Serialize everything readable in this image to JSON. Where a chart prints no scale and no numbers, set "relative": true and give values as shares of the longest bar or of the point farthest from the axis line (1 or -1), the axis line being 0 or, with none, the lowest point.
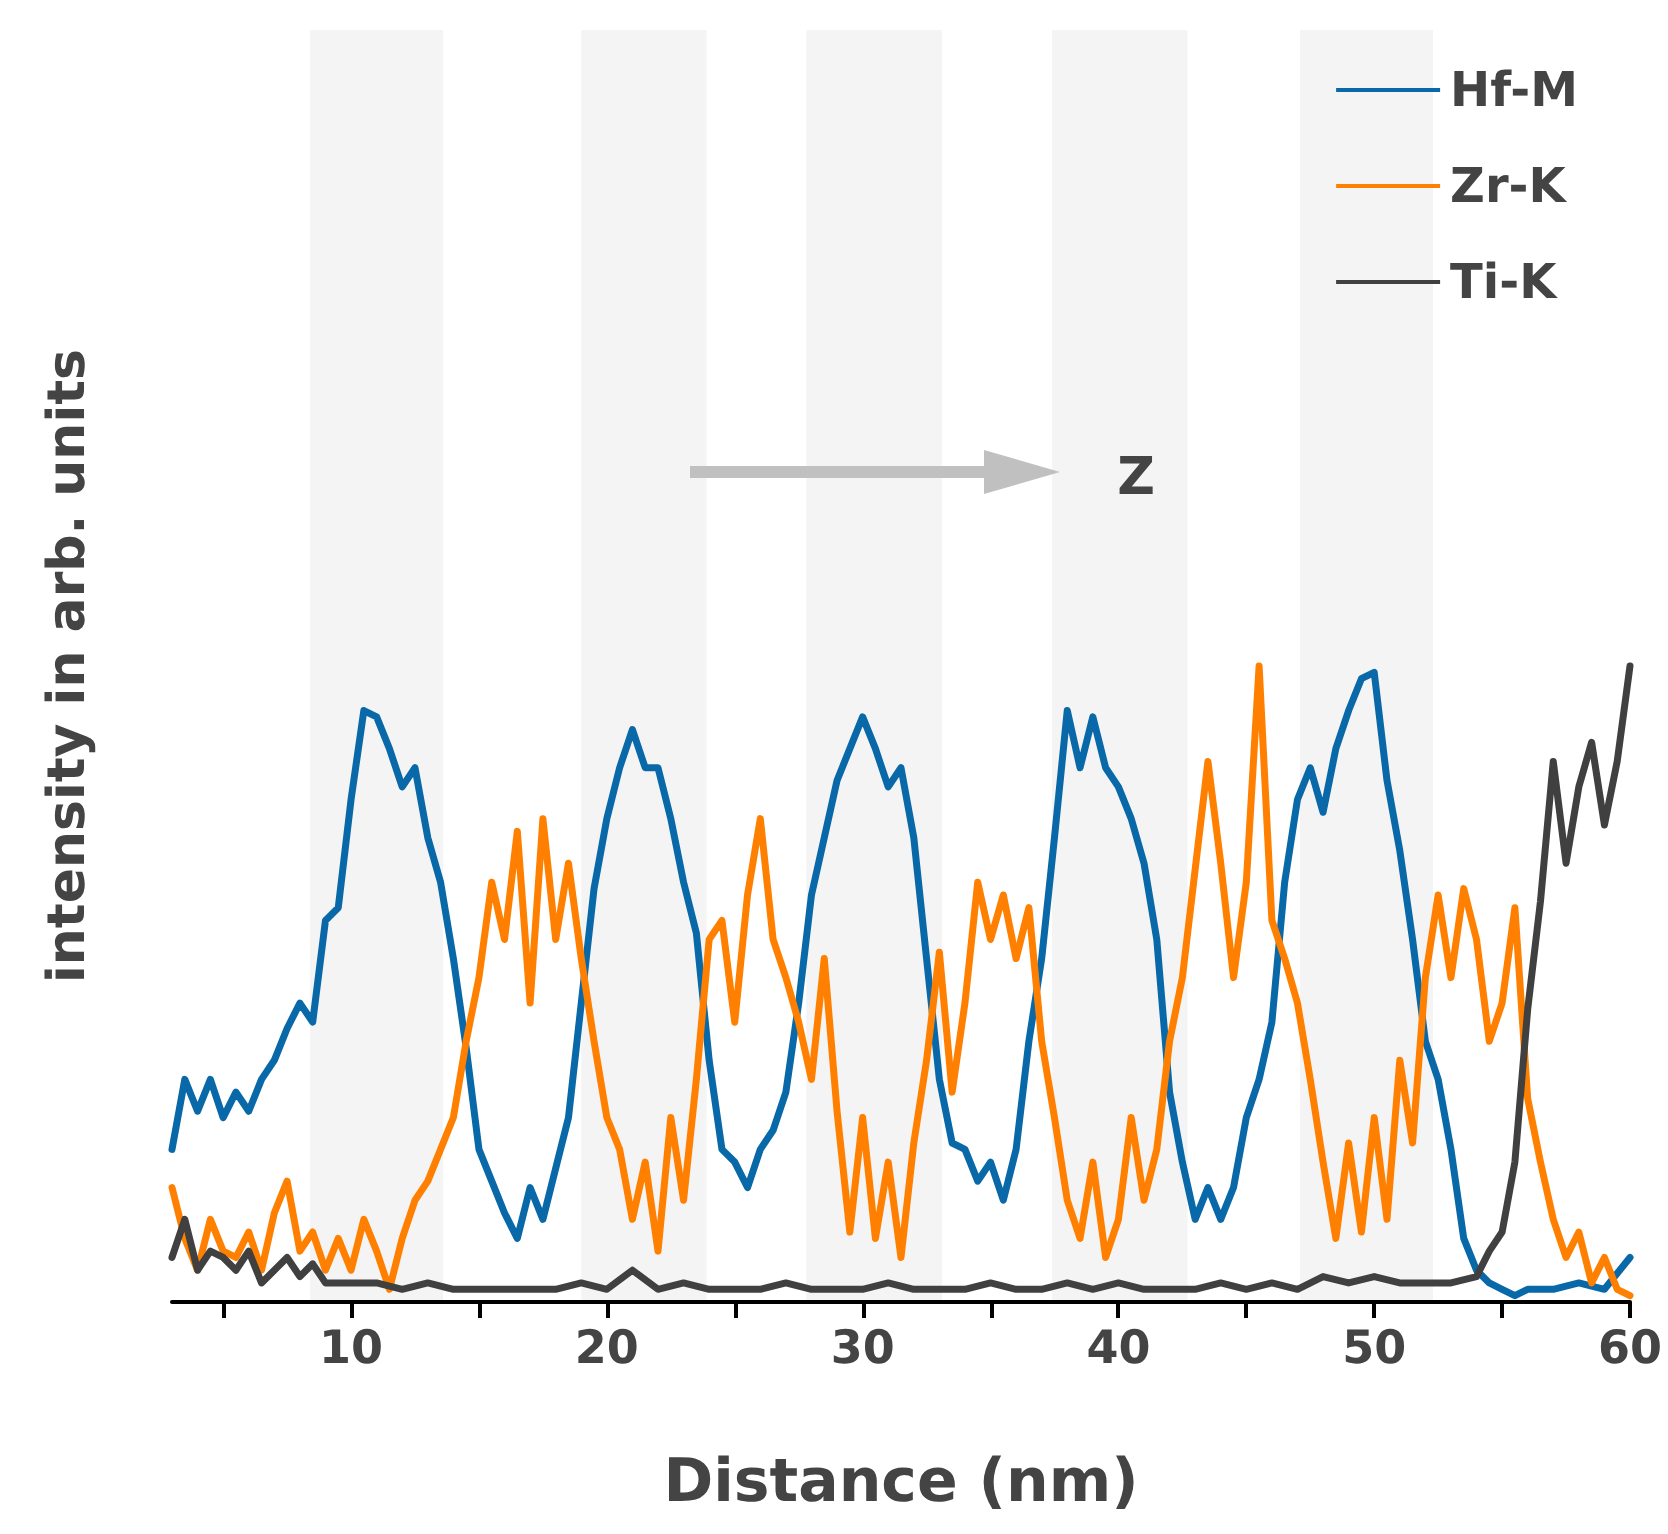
{
  "chart_data": {
    "type": "line",
    "xlabel": "Distance (nm)",
    "ylabel": "intensity in arb. units",
    "relative": true,
    "xlim": [
      3,
      60
    ],
    "xticks": [
      {
        "value": 5,
        "label": null
      },
      10,
      {
        "value": 15,
        "label": null
      },
      20,
      {
        "value": 25,
        "label": null
      },
      30,
      {
        "value": 35,
        "label": null
      },
      40,
      {
        "value": 45,
        "label": null
      },
      50,
      {
        "value": 55,
        "label": null
      },
      60
    ],
    "legend": "top right",
    "grid": false,
    "marker": "none",
    "line_style": "solid",
    "annotations": [
      "Z"
    ],
    "bands": [
      {
        "axis": "x",
        "from": 8.4,
        "to": 13.6,
        "color": "#f4f4f4"
      },
      {
        "axis": "x",
        "from": 19.0,
        "to": 23.9,
        "color": "#f4f4f4"
      },
      {
        "axis": "x",
        "from": 27.8,
        "to": 33.1,
        "color": "#f4f4f4"
      },
      {
        "axis": "x",
        "from": 37.4,
        "to": 42.7,
        "color": "#f4f4f4"
      },
      {
        "axis": "x",
        "from": 47.1,
        "to": 52.3,
        "color": "#f4f4f4"
      }
    ],
    "series": [
      {
        "name": "Hf-M",
        "color": "#0868a8",
        "x": [
          3,
          3.5,
          4,
          4.5,
          5,
          5.5,
          6,
          6.5,
          7,
          7.5,
          8,
          8.5,
          9,
          9.5,
          10,
          10.5,
          11,
          11.5,
          12,
          12.5,
          13,
          13.5,
          14,
          14.5,
          15,
          15.5,
          16,
          16.5,
          17,
          17.5,
          18,
          18.5,
          19,
          19.5,
          20,
          20.5,
          21,
          21.5,
          22,
          22.5,
          23,
          23.5,
          24,
          24.5,
          25,
          25.5,
          26,
          26.5,
          27,
          27.5,
          28,
          28.5,
          29,
          29.5,
          30,
          30.5,
          31,
          31.5,
          32,
          32.5,
          33,
          33.5,
          34,
          34.5,
          35,
          35.5,
          36,
          36.5,
          37,
          37.5,
          38,
          38.5,
          39,
          39.5,
          40,
          40.5,
          41,
          41.5,
          42,
          42.5,
          43,
          43.5,
          44,
          44.5,
          45,
          45.5,
          46,
          46.5,
          47,
          47.5,
          48,
          48.5,
          49,
          49.5,
          50,
          50.5,
          51,
          51.5,
          52,
          52.5,
          53,
          53.5,
          54,
          54.5,
          55,
          55.5,
          56,
          57,
          58,
          59,
          60
        ],
        "values": [
          0.24,
          0.35,
          0.3,
          0.35,
          0.29,
          0.33,
          0.3,
          0.35,
          0.38,
          0.43,
          0.47,
          0.44,
          0.6,
          0.62,
          0.79,
          0.93,
          0.92,
          0.87,
          0.81,
          0.84,
          0.73,
          0.66,
          0.54,
          0.4,
          0.24,
          0.19,
          0.14,
          0.1,
          0.18,
          0.13,
          0.21,
          0.29,
          0.47,
          0.65,
          0.76,
          0.84,
          0.9,
          0.84,
          0.84,
          0.76,
          0.66,
          0.58,
          0.38,
          0.24,
          0.22,
          0.18,
          0.24,
          0.27,
          0.33,
          0.47,
          0.64,
          0.73,
          0.82,
          0.87,
          0.92,
          0.87,
          0.81,
          0.84,
          0.73,
          0.54,
          0.35,
          0.25,
          0.24,
          0.19,
          0.22,
          0.16,
          0.24,
          0.41,
          0.54,
          0.73,
          0.93,
          0.84,
          0.92,
          0.84,
          0.81,
          0.76,
          0.69,
          0.57,
          0.33,
          0.22,
          0.13,
          0.18,
          0.13,
          0.18,
          0.29,
          0.35,
          0.44,
          0.66,
          0.79,
          0.84,
          0.77,
          0.87,
          0.93,
          0.98,
          0.99,
          0.82,
          0.71,
          0.57,
          0.41,
          0.35,
          0.24,
          0.1,
          0.05,
          0.03,
          0.02,
          0.01,
          0.02,
          0.02,
          0.03,
          0.02,
          0.07
        ]
      },
      {
        "name": "Zr-K",
        "color": "#ff8000",
        "x": [
          3,
          3.5,
          4,
          4.5,
          5,
          5.5,
          6,
          6.5,
          7,
          7.5,
          8,
          8.5,
          9,
          9.5,
          10,
          10.5,
          11,
          11.5,
          12,
          12.5,
          13,
          13.5,
          14,
          14.5,
          15,
          15.5,
          16,
          16.5,
          17,
          17.5,
          18,
          18.5,
          19,
          19.5,
          20,
          20.5,
          21,
          21.5,
          22,
          22.5,
          23,
          23.5,
          24,
          24.5,
          25,
          25.5,
          26,
          26.5,
          27,
          27.5,
          28,
          28.5,
          29,
          29.5,
          30,
          30.5,
          31,
          31.5,
          32,
          32.5,
          33,
          33.5,
          34,
          34.5,
          35,
          35.5,
          36,
          36.5,
          37,
          37.5,
          38,
          38.5,
          39,
          39.5,
          40,
          40.5,
          41,
          41.5,
          42,
          42.5,
          43,
          43.5,
          44,
          44.5,
          45,
          45.5,
          46,
          46.5,
          47,
          47.5,
          48,
          48.5,
          49,
          49.5,
          50,
          50.5,
          51,
          51.5,
          52,
          52.5,
          53,
          53.5,
          54,
          54.5,
          55,
          55.5,
          56,
          56.5,
          57,
          57.5,
          58,
          58.5,
          59,
          59.5,
          60
        ],
        "values": [
          0.18,
          0.1,
          0.05,
          0.13,
          0.08,
          0.07,
          0.11,
          0.05,
          0.14,
          0.19,
          0.08,
          0.11,
          0.05,
          0.1,
          0.05,
          0.13,
          0.08,
          0.02,
          0.1,
          0.16,
          0.19,
          0.24,
          0.29,
          0.41,
          0.51,
          0.66,
          0.57,
          0.74,
          0.47,
          0.76,
          0.57,
          0.69,
          0.54,
          0.41,
          0.29,
          0.24,
          0.13,
          0.22,
          0.08,
          0.29,
          0.16,
          0.35,
          0.57,
          0.6,
          0.44,
          0.64,
          0.76,
          0.57,
          0.51,
          0.44,
          0.35,
          0.54,
          0.3,
          0.11,
          0.29,
          0.1,
          0.22,
          0.07,
          0.25,
          0.38,
          0.55,
          0.33,
          0.47,
          0.66,
          0.57,
          0.64,
          0.54,
          0.62,
          0.41,
          0.29,
          0.16,
          0.1,
          0.22,
          0.07,
          0.13,
          0.29,
          0.16,
          0.24,
          0.41,
          0.51,
          0.68,
          0.85,
          0.69,
          0.51,
          0.66,
          1.0,
          0.6,
          0.54,
          0.47,
          0.35,
          0.22,
          0.1,
          0.25,
          0.11,
          0.29,
          0.13,
          0.38,
          0.25,
          0.51,
          0.64,
          0.51,
          0.65,
          0.57,
          0.41,
          0.47,
          0.62,
          0.32,
          0.22,
          0.13,
          0.07,
          0.11,
          0.03,
          0.07,
          0.02,
          0.01
        ]
      },
      {
        "name": "Ti-K",
        "color": "#404040",
        "x": [
          3,
          3.5,
          4,
          4.5,
          5,
          5.5,
          6,
          6.5,
          7,
          7.5,
          8,
          8.5,
          9,
          10,
          11,
          12,
          13,
          14,
          15,
          16,
          17,
          18,
          19,
          20,
          21,
          22,
          23,
          24,
          25,
          26,
          27,
          28,
          29,
          30,
          31,
          32,
          33,
          34,
          35,
          36,
          37,
          38,
          39,
          40,
          41,
          42,
          43,
          44,
          45,
          46,
          47,
          48,
          49,
          50,
          51,
          52,
          53,
          54,
          54.5,
          55,
          55.5,
          56,
          56.5,
          57,
          57.5,
          58,
          58.5,
          59,
          59.5,
          60
        ],
        "values": [
          0.07,
          0.13,
          0.05,
          0.08,
          0.07,
          0.05,
          0.08,
          0.03,
          0.05,
          0.07,
          0.04,
          0.06,
          0.03,
          0.03,
          0.03,
          0.02,
          0.03,
          0.02,
          0.02,
          0.02,
          0.02,
          0.02,
          0.03,
          0.02,
          0.05,
          0.02,
          0.03,
          0.02,
          0.02,
          0.02,
          0.03,
          0.02,
          0.02,
          0.02,
          0.03,
          0.02,
          0.02,
          0.02,
          0.03,
          0.02,
          0.02,
          0.03,
          0.02,
          0.03,
          0.02,
          0.02,
          0.02,
          0.03,
          0.02,
          0.03,
          0.02,
          0.04,
          0.03,
          0.04,
          0.03,
          0.03,
          0.03,
          0.04,
          0.08,
          0.11,
          0.22,
          0.46,
          0.63,
          0.85,
          0.69,
          0.81,
          0.88,
          0.75,
          0.85,
          1.0
        ]
      }
    ]
  }
}
